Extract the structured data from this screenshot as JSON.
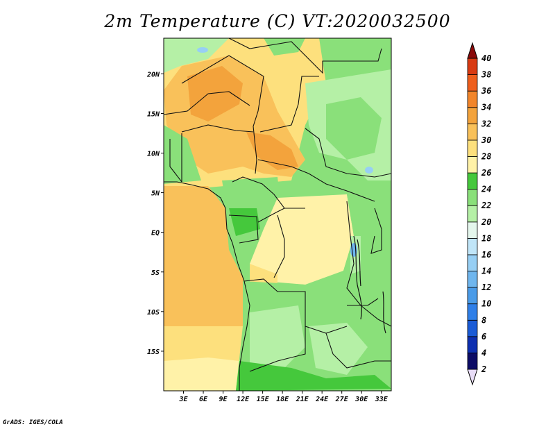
{
  "title": "2m Temperature (C) VT:2020032500",
  "credit": "GrADS: IGES/COLA",
  "map": {
    "lat_labels": [
      "20N",
      "15N",
      "10N",
      "5N",
      "EQ",
      "5S",
      "10S",
      "15S"
    ],
    "lat_values": [
      20,
      15,
      10,
      5,
      0,
      -5,
      -10,
      -15
    ],
    "lon_labels": [
      "3E",
      "6E",
      "9E",
      "12E",
      "15E",
      "18E",
      "21E",
      "24E",
      "27E",
      "30E",
      "33E"
    ],
    "lon_values": [
      3,
      6,
      9,
      12,
      15,
      18,
      21,
      24,
      27,
      30,
      33
    ],
    "lon_range": [
      0,
      34.5
    ],
    "lat_range": [
      -20,
      24.5
    ]
  },
  "colorbar": {
    "levels": [
      "2",
      "4",
      "6",
      "8",
      "10",
      "12",
      "14",
      "16",
      "18",
      "20",
      "22",
      "24",
      "26",
      "28",
      "30",
      "32",
      "34",
      "36",
      "38",
      "40"
    ],
    "colors": [
      "#0c0c66",
      "#0d2fb0",
      "#1a5bd6",
      "#2f7fe8",
      "#4a9be8",
      "#6fb6ee",
      "#97cff4",
      "#c0e5f8",
      "#e4f6ec",
      "#b5f0a6",
      "#8ae07a",
      "#45c83c",
      "#fff2a8",
      "#fde07d",
      "#f9c15a",
      "#f3a33c",
      "#f2852a",
      "#ee5e1c",
      "#d83a12",
      "#b21a0a",
      "#8a0a0a"
    ],
    "under_color": "#e8dcf7"
  }
}
